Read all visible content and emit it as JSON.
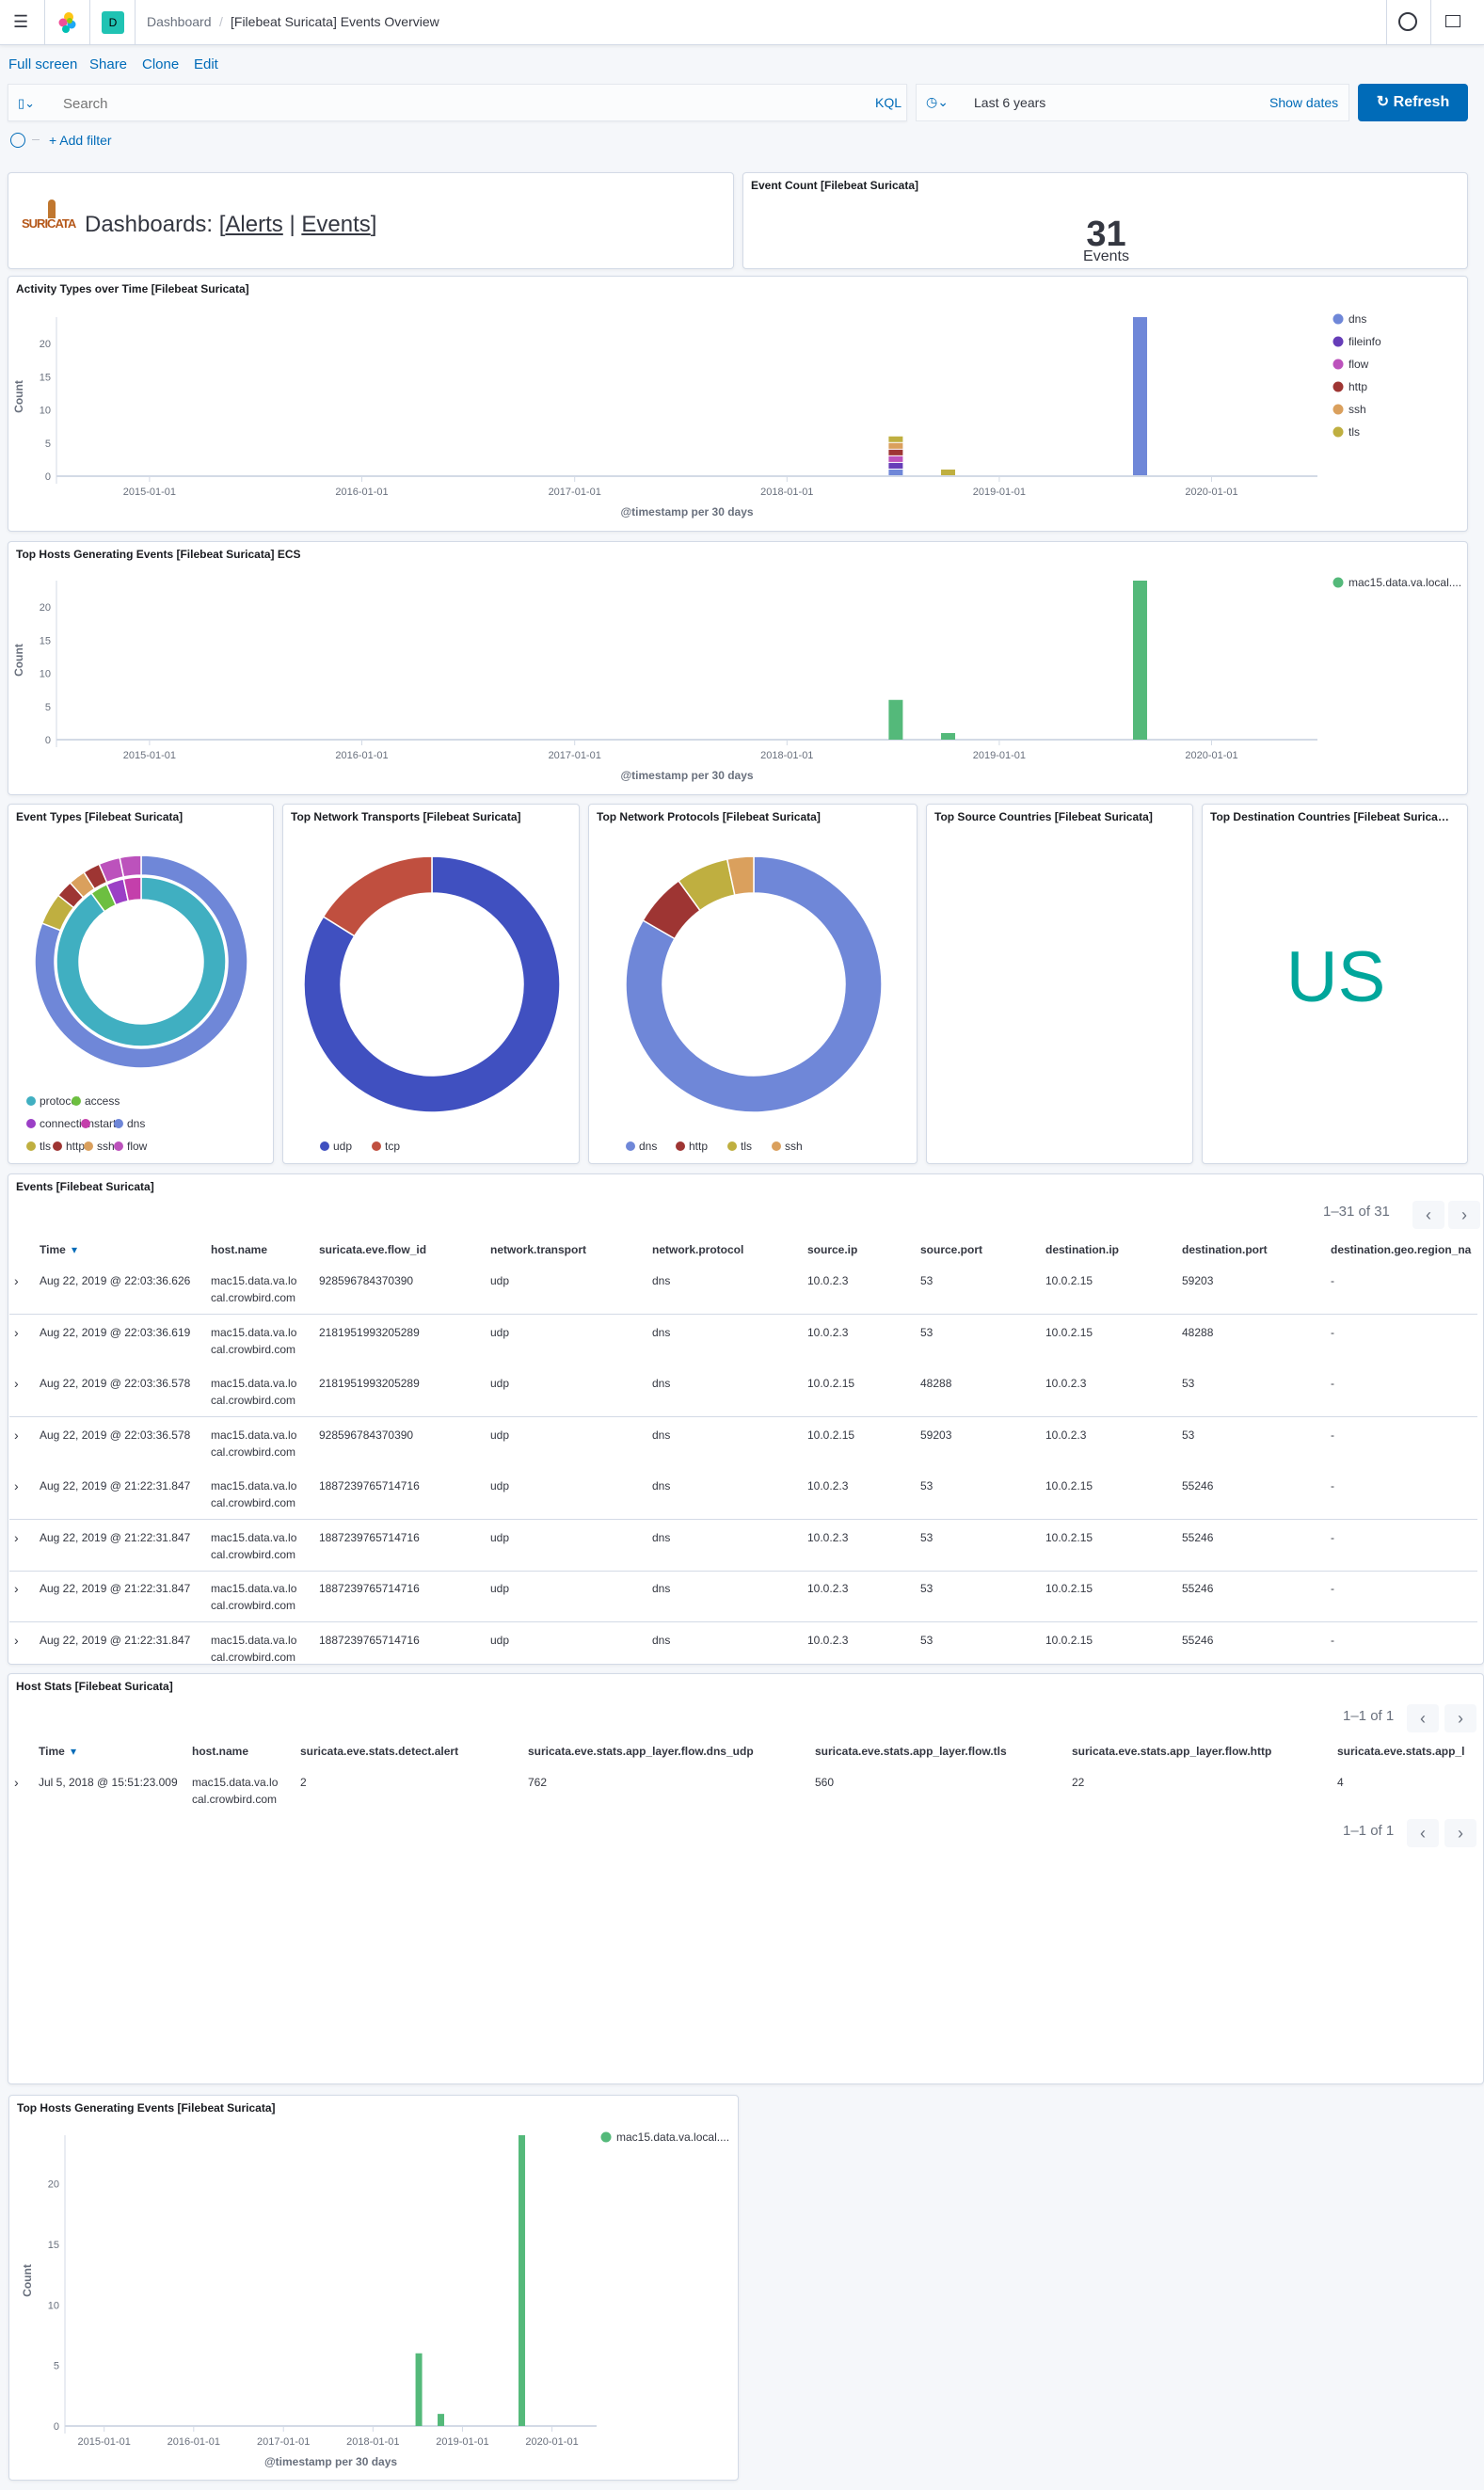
{
  "header": {
    "breadcrumb_root": "Dashboard",
    "breadcrumb_current": "[Filebeat Suricata] Events Overview",
    "space_avatar": "D"
  },
  "menu": {
    "full_screen": "Full screen",
    "share": "Share",
    "clone": "Clone",
    "edit": "Edit"
  },
  "query": {
    "placeholder": "Search",
    "language": "KQL",
    "time_range": "Last 6 years",
    "show_dates": "Show dates",
    "refresh": "Refresh",
    "add_filter": "+ Add filter"
  },
  "colors": {
    "accent": "#006bb8",
    "us": "#00a69b",
    "green": "#54b97a"
  },
  "markdown": {
    "logo": "SURICATA",
    "prefix": "Dashboards: [",
    "alerts": "Alerts",
    "sep": "|",
    "events": "Events",
    "suffix": "]"
  },
  "event_count": {
    "title": "Event Count [Filebeat Suricata]",
    "value": "31",
    "label": "Events"
  },
  "panels": {
    "event_types": "Event Types [Filebeat Suricata]",
    "transports": "Top Network Transports [Filebeat Suricata]",
    "protocols": "Top Network Protocols [Filebeat Suricata]",
    "src_countries": "Top Source Countries [Filebeat Suricata]",
    "dst_countries": "Top Destination Countries [Filebeat Suricata]",
    "dst_country_value": "US"
  },
  "chart_data": [
    {
      "id": "activity",
      "type": "bar",
      "stacked": true,
      "title": "Activity Types over Time [Filebeat Suricata]",
      "xlabel": "@timestamp per 30 days",
      "ylabel": "Count",
      "ylim": [
        0,
        24
      ],
      "yticks": [
        0,
        5,
        10,
        15,
        20
      ],
      "xticks": [
        "2015-01-01",
        "2016-01-01",
        "2017-01-01",
        "2018-01-01",
        "2019-01-01",
        "2020-01-01"
      ],
      "xlim": [
        "2014-07-25",
        "2020-07-01"
      ],
      "x": [
        "2018-07-07",
        "2018-10-05",
        "2019-08-31"
      ],
      "series": [
        {
          "name": "dns",
          "color": "#6f87d8",
          "values": [
            1,
            0,
            24
          ]
        },
        {
          "name": "fileinfo",
          "color": "#663db8",
          "values": [
            1,
            0,
            0
          ]
        },
        {
          "name": "flow",
          "color": "#bc52bc",
          "values": [
            1,
            0,
            0
          ]
        },
        {
          "name": "http",
          "color": "#9e3533",
          "values": [
            1,
            0,
            0
          ]
        },
        {
          "name": "ssh",
          "color": "#daa05d",
          "values": [
            1,
            0,
            0
          ]
        },
        {
          "name": "tls",
          "color": "#bfaf40",
          "values": [
            1,
            1,
            0
          ]
        }
      ],
      "legend": "right"
    },
    {
      "id": "hosts_ecs",
      "type": "bar",
      "title": "Top Hosts Generating Events [Filebeat Suricata] ECS",
      "xlabel": "@timestamp per 30 days",
      "ylabel": "Count",
      "ylim": [
        0,
        24
      ],
      "yticks": [
        0,
        5,
        10,
        15,
        20
      ],
      "xticks": [
        "2015-01-01",
        "2016-01-01",
        "2017-01-01",
        "2018-01-01",
        "2019-01-01",
        "2020-01-01"
      ],
      "xlim": [
        "2014-07-25",
        "2020-07-01"
      ],
      "x": [
        "2018-07-07",
        "2018-10-05",
        "2019-08-31"
      ],
      "series": [
        {
          "name": "mac15.data.va.local....",
          "color": "#54b97a",
          "values": [
            6,
            1,
            24
          ]
        }
      ],
      "legend": "right"
    },
    {
      "id": "hosts",
      "type": "bar",
      "title": "Top Hosts Generating Events [Filebeat Suricata]",
      "xlabel": "@timestamp per 30 days",
      "ylabel": "Count",
      "ylim": [
        0,
        24
      ],
      "yticks": [
        0,
        5,
        10,
        15,
        20
      ],
      "xticks": [
        "2015-01-01",
        "2016-01-01",
        "2017-01-01",
        "2018-01-01",
        "2019-01-01",
        "2020-01-01"
      ],
      "xlim": [
        "2014-07-25",
        "2020-07-01"
      ],
      "x": [
        "2018-07-07",
        "2018-10-05",
        "2019-08-31"
      ],
      "series": [
        {
          "name": "mac15.data.va.local....",
          "color": "#54b97a",
          "values": [
            6,
            1,
            24
          ]
        }
      ],
      "legend": "right"
    },
    {
      "id": "event_types",
      "type": "pie",
      "donut": true,
      "inner": [
        {
          "name": "protocol",
          "color": "#40afc1",
          "value": 27
        },
        {
          "name": "access",
          "color": "#6dbf40",
          "value": 1
        },
        {
          "name": "connection",
          "color": "#9b3fc6",
          "value": 1
        },
        {
          "name": "start",
          "color": "#c43fab",
          "value": 1
        }
      ],
      "outer": [
        {
          "name": "dns",
          "color": "#6f87d8",
          "value": 25
        },
        {
          "name": "tls",
          "color": "#bfaf40",
          "value": 1.5
        },
        {
          "name": "http",
          "color": "#9e3533",
          "value": 0.8
        },
        {
          "name": "ssh",
          "color": "#daa05d",
          "value": 0.8
        },
        {
          "name": "http",
          "color": "#9e3533",
          "value": 0.8
        },
        {
          "name": "flow",
          "color": "#bc52bc",
          "value": 1
        },
        {
          "name": "flow",
          "color": "#bc52bc",
          "value": 1
        }
      ],
      "legend": [
        {
          "name": "protocol",
          "color": "#40afc1"
        },
        {
          "name": "access",
          "color": "#6dbf40"
        },
        {
          "name": "connection",
          "color": "#9b3fc6"
        },
        {
          "name": "start",
          "color": "#c43fab"
        },
        {
          "name": "dns",
          "color": "#6f87d8"
        },
        {
          "name": "tls",
          "color": "#bfaf40"
        },
        {
          "name": "http",
          "color": "#9e3533"
        },
        {
          "name": "ssh",
          "color": "#daa05d"
        },
        {
          "name": "flow",
          "color": "#bc52bc"
        }
      ]
    },
    {
      "id": "transports",
      "type": "pie",
      "donut": true,
      "slices": [
        {
          "name": "udp",
          "color": "#4050c0",
          "value": 26
        },
        {
          "name": "tcp",
          "color": "#c04f3f",
          "value": 5
        }
      ]
    },
    {
      "id": "protocols",
      "type": "pie",
      "donut": true,
      "slices": [
        {
          "name": "dns",
          "color": "#6f87d8",
          "value": 25
        },
        {
          "name": "http",
          "color": "#9e3533",
          "value": 2
        },
        {
          "name": "tls",
          "color": "#bfaf40",
          "value": 2
        },
        {
          "name": "ssh",
          "color": "#daa05d",
          "value": 1
        }
      ]
    }
  ],
  "events_table": {
    "title": "Events [Filebeat Suricata]",
    "pagination": "1–31 of 31",
    "columns": [
      "Time",
      "host.name",
      "suricata.eve.flow_id",
      "network.transport",
      "network.protocol",
      "source.ip",
      "source.port",
      "destination.ip",
      "destination.port",
      "destination.geo.region_na"
    ],
    "rows": [
      [
        "Aug 22, 2019 @ 22:03:36.626",
        "mac15.data.va.lo\ncal.crowbird.com",
        "928596784370390",
        "udp",
        "dns",
        "10.0.2.3",
        "53",
        "10.0.2.15",
        "59203",
        "-"
      ],
      [
        "Aug 22, 2019 @ 22:03:36.619",
        "mac15.data.va.lo\ncal.crowbird.com",
        "2181951993205289",
        "udp",
        "dns",
        "10.0.2.3",
        "53",
        "10.0.2.15",
        "48288",
        "-"
      ],
      [
        "Aug 22, 2019 @ 22:03:36.578",
        "mac15.data.va.lo\ncal.crowbird.com",
        "2181951993205289",
        "udp",
        "dns",
        "10.0.2.15",
        "48288",
        "10.0.2.3",
        "53",
        "-"
      ],
      [
        "Aug 22, 2019 @ 22:03:36.578",
        "mac15.data.va.lo\ncal.crowbird.com",
        "928596784370390",
        "udp",
        "dns",
        "10.0.2.15",
        "59203",
        "10.0.2.3",
        "53",
        "-"
      ],
      [
        "Aug 22, 2019 @ 21:22:31.847",
        "mac15.data.va.lo\ncal.crowbird.com",
        "1887239765714716",
        "udp",
        "dns",
        "10.0.2.3",
        "53",
        "10.0.2.15",
        "55246",
        "-"
      ],
      [
        "Aug 22, 2019 @ 21:22:31.847",
        "mac15.data.va.lo\ncal.crowbird.com",
        "1887239765714716",
        "udp",
        "dns",
        "10.0.2.3",
        "53",
        "10.0.2.15",
        "55246",
        "-"
      ],
      [
        "Aug 22, 2019 @ 21:22:31.847",
        "mac15.data.va.lo\ncal.crowbird.com",
        "1887239765714716",
        "udp",
        "dns",
        "10.0.2.3",
        "53",
        "10.0.2.15",
        "55246",
        "-"
      ],
      [
        "Aug 22, 2019 @ 21:22:31.847",
        "mac15.data.va.lo\ncal.crowbird.com",
        "1887239765714716",
        "udp",
        "dns",
        "10.0.2.3",
        "53",
        "10.0.2.15",
        "55246",
        "-"
      ]
    ]
  },
  "host_stats": {
    "title": "Host Stats [Filebeat Suricata]",
    "pagination": "1–1 of 1",
    "columns": [
      "Time",
      "host.name",
      "suricata.eve.stats.detect.alert",
      "suricata.eve.stats.app_layer.flow.dns_udp",
      "suricata.eve.stats.app_layer.flow.tls",
      "suricata.eve.stats.app_layer.flow.http",
      "suricata.eve.stats.app_l"
    ],
    "rows": [
      [
        "Jul 5, 2018 @ 15:51:23.009",
        "mac15.data.va.lo\ncal.crowbird.com",
        "2",
        "762",
        "560",
        "22",
        "4"
      ]
    ]
  }
}
